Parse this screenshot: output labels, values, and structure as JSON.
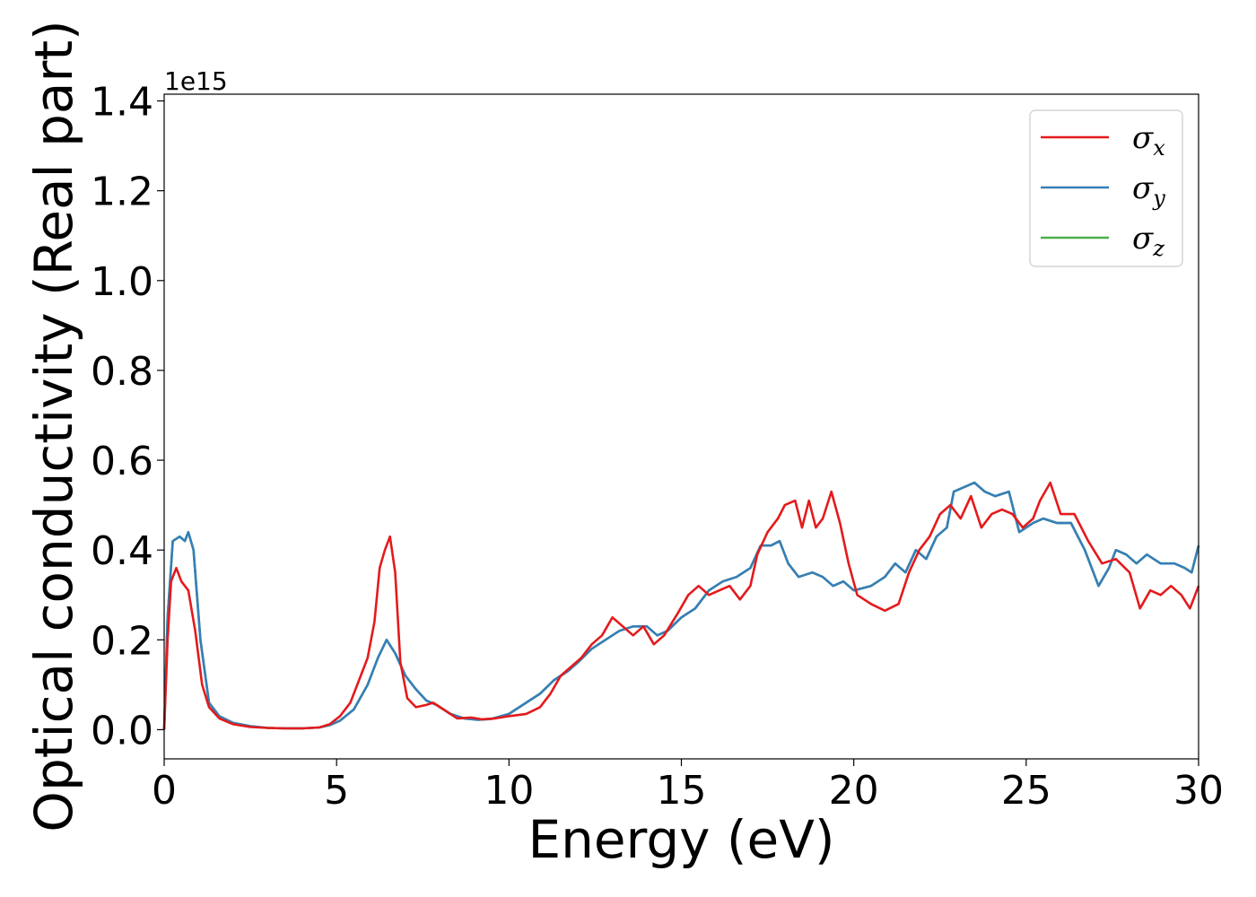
{
  "chart_data": {
    "type": "line",
    "xlabel": "Energy (eV)",
    "ylabel": "Optical conductivity (Real part)",
    "y_offset_label": "1e15",
    "xlim": [
      0,
      30
    ],
    "ylim": [
      -0.065,
      1.415
    ],
    "x_ticks": [
      0,
      5,
      10,
      15,
      20,
      25,
      30
    ],
    "x_tick_labels": [
      "0",
      "5",
      "10",
      "15",
      "20",
      "25",
      "30"
    ],
    "y_ticks": [
      0.0,
      0.2,
      0.4,
      0.6,
      0.8,
      1.0,
      1.2,
      1.4
    ],
    "y_tick_labels": [
      "0.0",
      "0.2",
      "0.4",
      "0.6",
      "0.8",
      "1.0",
      "1.2",
      "1.4"
    ],
    "grid": false,
    "legend_position": "top-right",
    "series": [
      {
        "name": "σx",
        "label_main": "σ",
        "label_sub": "x",
        "color": "#e41a1c",
        "points": [
          [
            0,
            0.0
          ],
          [
            0.1,
            0.2
          ],
          [
            0.2,
            0.33
          ],
          [
            0.35,
            0.36
          ],
          [
            0.5,
            0.33
          ],
          [
            0.7,
            0.31
          ],
          [
            0.9,
            0.22
          ],
          [
            1.1,
            0.1
          ],
          [
            1.3,
            0.05
          ],
          [
            1.6,
            0.025
          ],
          [
            2,
            0.012
          ],
          [
            2.5,
            0.006
          ],
          [
            3,
            0.004
          ],
          [
            3.5,
            0.003
          ],
          [
            4,
            0.003
          ],
          [
            4.5,
            0.005
          ],
          [
            4.8,
            0.012
          ],
          [
            5.1,
            0.03
          ],
          [
            5.4,
            0.06
          ],
          [
            5.7,
            0.12
          ],
          [
            5.9,
            0.16
          ],
          [
            6.1,
            0.24
          ],
          [
            6.25,
            0.36
          ],
          [
            6.4,
            0.4
          ],
          [
            6.55,
            0.43
          ],
          [
            6.7,
            0.35
          ],
          [
            6.85,
            0.15
          ],
          [
            7.05,
            0.07
          ],
          [
            7.3,
            0.05
          ],
          [
            7.6,
            0.055
          ],
          [
            7.8,
            0.06
          ],
          [
            8.1,
            0.045
          ],
          [
            8.5,
            0.025
          ],
          [
            8.9,
            0.027
          ],
          [
            9.2,
            0.023
          ],
          [
            9.6,
            0.025
          ],
          [
            10,
            0.03
          ],
          [
            10.5,
            0.035
          ],
          [
            10.9,
            0.05
          ],
          [
            11.2,
            0.08
          ],
          [
            11.5,
            0.12
          ],
          [
            11.8,
            0.14
          ],
          [
            12.1,
            0.16
          ],
          [
            12.4,
            0.19
          ],
          [
            12.7,
            0.21
          ],
          [
            13,
            0.25
          ],
          [
            13.3,
            0.23
          ],
          [
            13.6,
            0.21
          ],
          [
            13.9,
            0.23
          ],
          [
            14.2,
            0.19
          ],
          [
            14.5,
            0.21
          ],
          [
            14.9,
            0.26
          ],
          [
            15.2,
            0.3
          ],
          [
            15.5,
            0.32
          ],
          [
            15.8,
            0.3
          ],
          [
            16.1,
            0.31
          ],
          [
            16.4,
            0.32
          ],
          [
            16.7,
            0.29
          ],
          [
            17,
            0.32
          ],
          [
            17.2,
            0.39
          ],
          [
            17.5,
            0.44
          ],
          [
            17.8,
            0.47
          ],
          [
            18,
            0.5
          ],
          [
            18.3,
            0.51
          ],
          [
            18.5,
            0.45
          ],
          [
            18.7,
            0.51
          ],
          [
            18.9,
            0.45
          ],
          [
            19.1,
            0.47
          ],
          [
            19.35,
            0.53
          ],
          [
            19.6,
            0.46
          ],
          [
            19.85,
            0.37
          ],
          [
            20.1,
            0.3
          ],
          [
            20.5,
            0.28
          ],
          [
            20.9,
            0.265
          ],
          [
            21.3,
            0.28
          ],
          [
            21.6,
            0.35
          ],
          [
            21.9,
            0.4
          ],
          [
            22.2,
            0.43
          ],
          [
            22.5,
            0.48
          ],
          [
            22.8,
            0.5
          ],
          [
            23.1,
            0.47
          ],
          [
            23.4,
            0.52
          ],
          [
            23.7,
            0.45
          ],
          [
            24,
            0.48
          ],
          [
            24.3,
            0.49
          ],
          [
            24.6,
            0.48
          ],
          [
            24.9,
            0.45
          ],
          [
            25.2,
            0.47
          ],
          [
            25.4,
            0.51
          ],
          [
            25.7,
            0.55
          ],
          [
            26,
            0.48
          ],
          [
            26.4,
            0.48
          ],
          [
            26.8,
            0.42
          ],
          [
            27.2,
            0.37
          ],
          [
            27.6,
            0.38
          ],
          [
            28,
            0.35
          ],
          [
            28.3,
            0.27
          ],
          [
            28.6,
            0.31
          ],
          [
            28.9,
            0.3
          ],
          [
            29.2,
            0.32
          ],
          [
            29.5,
            0.3
          ],
          [
            29.75,
            0.27
          ],
          [
            30,
            0.32
          ]
        ]
      },
      {
        "name": "σy",
        "label_main": "σ",
        "label_sub": "y",
        "color": "#377eb8",
        "points": [
          [
            0,
            0.0
          ],
          [
            0.1,
            0.25
          ],
          [
            0.25,
            0.42
          ],
          [
            0.45,
            0.43
          ],
          [
            0.6,
            0.42
          ],
          [
            0.7,
            0.44
          ],
          [
            0.85,
            0.4
          ],
          [
            1.05,
            0.2
          ],
          [
            1.3,
            0.06
          ],
          [
            1.6,
            0.03
          ],
          [
            2,
            0.015
          ],
          [
            2.5,
            0.008
          ],
          [
            3,
            0.004
          ],
          [
            3.5,
            0.003
          ],
          [
            4,
            0.003
          ],
          [
            4.5,
            0.005
          ],
          [
            4.8,
            0.01
          ],
          [
            5.1,
            0.02
          ],
          [
            5.5,
            0.045
          ],
          [
            5.9,
            0.1
          ],
          [
            6.2,
            0.16
          ],
          [
            6.45,
            0.2
          ],
          [
            6.7,
            0.17
          ],
          [
            7,
            0.12
          ],
          [
            7.3,
            0.09
          ],
          [
            7.6,
            0.065
          ],
          [
            7.9,
            0.055
          ],
          [
            8.3,
            0.035
          ],
          [
            8.7,
            0.025
          ],
          [
            9.1,
            0.022
          ],
          [
            9.5,
            0.024
          ],
          [
            10,
            0.035
          ],
          [
            10.5,
            0.06
          ],
          [
            10.9,
            0.08
          ],
          [
            11.3,
            0.11
          ],
          [
            11.7,
            0.13
          ],
          [
            12,
            0.15
          ],
          [
            12.4,
            0.18
          ],
          [
            12.8,
            0.2
          ],
          [
            13.2,
            0.22
          ],
          [
            13.6,
            0.23
          ],
          [
            14,
            0.23
          ],
          [
            14.3,
            0.21
          ],
          [
            14.6,
            0.22
          ],
          [
            15,
            0.25
          ],
          [
            15.4,
            0.27
          ],
          [
            15.8,
            0.31
          ],
          [
            16.2,
            0.33
          ],
          [
            16.6,
            0.34
          ],
          [
            17,
            0.36
          ],
          [
            17.3,
            0.41
          ],
          [
            17.6,
            0.41
          ],
          [
            17.85,
            0.42
          ],
          [
            18.1,
            0.37
          ],
          [
            18.4,
            0.34
          ],
          [
            18.8,
            0.35
          ],
          [
            19.1,
            0.34
          ],
          [
            19.4,
            0.32
          ],
          [
            19.7,
            0.33
          ],
          [
            20,
            0.31
          ],
          [
            20.5,
            0.32
          ],
          [
            20.9,
            0.34
          ],
          [
            21.2,
            0.37
          ],
          [
            21.5,
            0.35
          ],
          [
            21.8,
            0.4
          ],
          [
            22.1,
            0.38
          ],
          [
            22.4,
            0.43
          ],
          [
            22.7,
            0.45
          ],
          [
            22.9,
            0.53
          ],
          [
            23.2,
            0.54
          ],
          [
            23.5,
            0.55
          ],
          [
            23.8,
            0.53
          ],
          [
            24.1,
            0.52
          ],
          [
            24.5,
            0.53
          ],
          [
            24.8,
            0.44
          ],
          [
            25.2,
            0.46
          ],
          [
            25.5,
            0.47
          ],
          [
            25.9,
            0.46
          ],
          [
            26.3,
            0.46
          ],
          [
            26.7,
            0.4
          ],
          [
            27.1,
            0.32
          ],
          [
            27.4,
            0.36
          ],
          [
            27.6,
            0.4
          ],
          [
            27.9,
            0.39
          ],
          [
            28.2,
            0.37
          ],
          [
            28.5,
            0.39
          ],
          [
            28.9,
            0.37
          ],
          [
            29.3,
            0.37
          ],
          [
            29.6,
            0.36
          ],
          [
            29.8,
            0.35
          ],
          [
            30,
            0.41
          ]
        ]
      },
      {
        "name": "σz",
        "label_main": "σ",
        "label_sub": "z",
        "color": "#4daf4a",
        "points": [
          [
            0,
            0.0
          ],
          [
            0.1,
            0.25
          ],
          [
            0.25,
            0.42
          ],
          [
            0.45,
            0.43
          ],
          [
            0.6,
            0.42
          ],
          [
            0.7,
            0.44
          ],
          [
            0.85,
            0.4
          ],
          [
            1.05,
            0.2
          ],
          [
            1.3,
            0.06
          ],
          [
            1.6,
            0.03
          ],
          [
            2,
            0.015
          ],
          [
            2.5,
            0.008
          ],
          [
            3,
            0.004
          ],
          [
            3.5,
            0.003
          ],
          [
            4,
            0.003
          ],
          [
            4.5,
            0.005
          ],
          [
            4.8,
            0.01
          ],
          [
            5.1,
            0.02
          ],
          [
            5.5,
            0.045
          ],
          [
            5.9,
            0.1
          ],
          [
            6.2,
            0.16
          ],
          [
            6.45,
            0.2
          ],
          [
            6.7,
            0.17
          ],
          [
            7,
            0.12
          ],
          [
            7.3,
            0.09
          ],
          [
            7.6,
            0.065
          ],
          [
            7.9,
            0.055
          ],
          [
            8.3,
            0.035
          ],
          [
            8.7,
            0.025
          ],
          [
            9.1,
            0.022
          ],
          [
            9.5,
            0.024
          ],
          [
            10,
            0.035
          ],
          [
            10.5,
            0.06
          ],
          [
            10.9,
            0.08
          ],
          [
            11.3,
            0.11
          ],
          [
            11.7,
            0.13
          ],
          [
            12,
            0.15
          ],
          [
            12.4,
            0.18
          ],
          [
            12.8,
            0.2
          ],
          [
            13.2,
            0.22
          ],
          [
            13.6,
            0.23
          ],
          [
            14,
            0.23
          ],
          [
            14.3,
            0.21
          ],
          [
            14.6,
            0.22
          ],
          [
            15,
            0.25
          ],
          [
            15.4,
            0.27
          ],
          [
            15.8,
            0.31
          ],
          [
            16.2,
            0.33
          ],
          [
            16.6,
            0.34
          ],
          [
            17,
            0.36
          ],
          [
            17.3,
            0.41
          ],
          [
            17.6,
            0.41
          ],
          [
            17.85,
            0.42
          ],
          [
            18.1,
            0.37
          ],
          [
            18.4,
            0.34
          ],
          [
            18.8,
            0.35
          ],
          [
            19.1,
            0.34
          ],
          [
            19.4,
            0.32
          ],
          [
            19.7,
            0.33
          ],
          [
            20,
            0.31
          ],
          [
            20.5,
            0.32
          ],
          [
            20.9,
            0.34
          ],
          [
            21.2,
            0.37
          ],
          [
            21.5,
            0.35
          ],
          [
            21.8,
            0.4
          ],
          [
            22.1,
            0.38
          ],
          [
            22.4,
            0.43
          ],
          [
            22.7,
            0.45
          ],
          [
            22.9,
            0.53
          ],
          [
            23.2,
            0.54
          ],
          [
            23.5,
            0.55
          ],
          [
            23.8,
            0.53
          ],
          [
            24.1,
            0.52
          ],
          [
            24.5,
            0.53
          ],
          [
            24.8,
            0.44
          ],
          [
            25.2,
            0.46
          ],
          [
            25.5,
            0.47
          ],
          [
            25.9,
            0.46
          ],
          [
            26.3,
            0.46
          ],
          [
            26.7,
            0.4
          ],
          [
            27.1,
            0.32
          ],
          [
            27.4,
            0.36
          ],
          [
            27.6,
            0.4
          ],
          [
            27.9,
            0.39
          ],
          [
            28.2,
            0.37
          ],
          [
            28.5,
            0.39
          ],
          [
            28.9,
            0.37
          ],
          [
            29.3,
            0.37
          ],
          [
            29.6,
            0.36
          ],
          [
            29.8,
            0.35
          ],
          [
            30,
            0.41
          ]
        ]
      }
    ]
  }
}
